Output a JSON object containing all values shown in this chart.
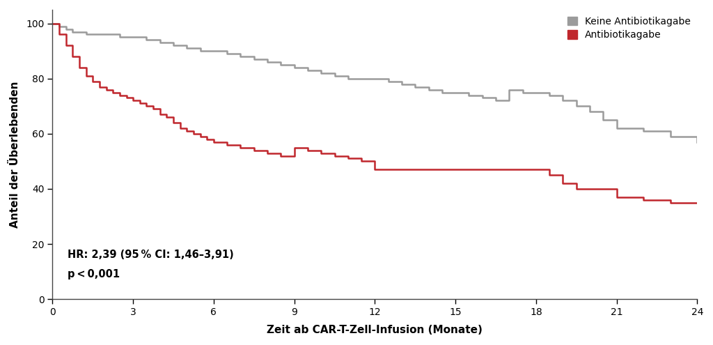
{
  "xlabel": "Zeit ab CAR-T-Zell-Infusion (Monate)",
  "ylabel": "Anteil der Überlebenden",
  "xlim": [
    0,
    24
  ],
  "ylim": [
    0,
    105
  ],
  "xticks": [
    0,
    3,
    6,
    9,
    12,
    15,
    18,
    21,
    24
  ],
  "yticks": [
    0,
    20,
    40,
    60,
    80,
    100
  ],
  "annotation_line1": "HR: 2,39 (95 % CI: 1,46–3,91)",
  "annotation_line2": "p < 0,001",
  "legend_labels": [
    "Keine Antibiotikagabe",
    "Antibiotikagabe"
  ],
  "color_keine": "#9b9b9b",
  "color_anti": "#c0272d",
  "background_color": "#ffffff",
  "keine_x": [
    0,
    0.25,
    0.5,
    0.75,
    1.0,
    1.25,
    1.5,
    1.75,
    2.0,
    2.25,
    2.5,
    2.75,
    3.0,
    3.5,
    4.0,
    4.5,
    5.0,
    5.5,
    6.0,
    6.5,
    7.0,
    7.5,
    8.0,
    8.5,
    9.0,
    9.5,
    10.0,
    10.5,
    11.0,
    11.5,
    12.0,
    12.5,
    13.0,
    13.5,
    14.0,
    14.5,
    15.0,
    15.5,
    16.0,
    16.5,
    17.0,
    17.5,
    18.0,
    18.5,
    19.0,
    19.5,
    20.0,
    20.5,
    21.0,
    22.0,
    23.0,
    24.0
  ],
  "keine_y": [
    100,
    99,
    98,
    97,
    97,
    96,
    96,
    96,
    96,
    96,
    95,
    95,
    95,
    94,
    93,
    92,
    91,
    90,
    90,
    89,
    88,
    87,
    86,
    85,
    84,
    83,
    82,
    81,
    80,
    80,
    80,
    79,
    78,
    77,
    76,
    75,
    75,
    74,
    73,
    72,
    76,
    75,
    75,
    74,
    72,
    70,
    68,
    65,
    62,
    61,
    59,
    57
  ],
  "anti_x": [
    0,
    0.25,
    0.5,
    0.75,
    1.0,
    1.25,
    1.5,
    1.75,
    2.0,
    2.25,
    2.5,
    2.75,
    3.0,
    3.25,
    3.5,
    3.75,
    4.0,
    4.25,
    4.5,
    4.75,
    5.0,
    5.25,
    5.5,
    5.75,
    6.0,
    6.5,
    7.0,
    7.5,
    8.0,
    8.5,
    9.0,
    9.5,
    10.0,
    10.5,
    11.0,
    11.5,
    12.0,
    13.0,
    14.0,
    15.0,
    16.0,
    17.0,
    18.0,
    18.5,
    19.0,
    19.5,
    20.0,
    20.5,
    21.0,
    22.0,
    23.0,
    24.0
  ],
  "anti_y": [
    100,
    96,
    92,
    88,
    84,
    81,
    79,
    77,
    76,
    75,
    74,
    73,
    72,
    71,
    70,
    69,
    67,
    66,
    64,
    62,
    61,
    60,
    59,
    58,
    57,
    56,
    55,
    54,
    53,
    52,
    55,
    54,
    53,
    52,
    51,
    50,
    47,
    47,
    47,
    47,
    47,
    47,
    47,
    45,
    42,
    40,
    40,
    40,
    37,
    36,
    35,
    35
  ]
}
